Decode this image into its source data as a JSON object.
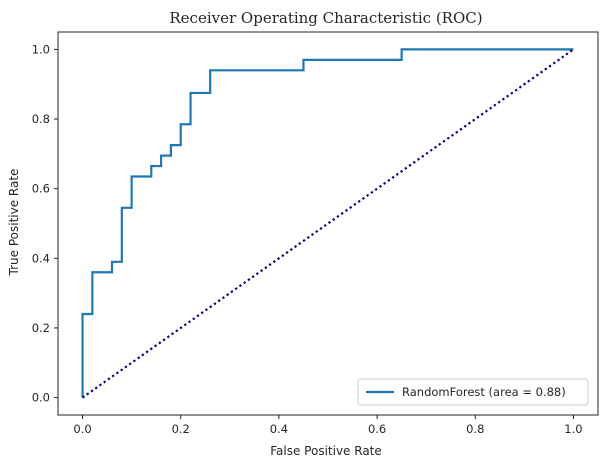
{
  "chart_data": {
    "type": "line",
    "title": "Receiver Operating Characteristic (ROC)",
    "xlabel": "False Positive Rate",
    "ylabel": "True Positive Rate",
    "xlim": [
      -0.05,
      1.05
    ],
    "ylim": [
      -0.05,
      1.05
    ],
    "xticks": [
      0.0,
      0.2,
      0.4,
      0.6,
      0.8,
      1.0
    ],
    "yticks": [
      0.0,
      0.2,
      0.4,
      0.6,
      0.8,
      1.0
    ],
    "tick_labels_x": [
      "0.0",
      "0.2",
      "0.4",
      "0.6",
      "0.8",
      "1.0"
    ],
    "tick_labels_y": [
      "0.0",
      "0.2",
      "0.4",
      "0.6",
      "0.8",
      "1.0"
    ],
    "grid": false,
    "legend_position": "lower-right",
    "series": [
      {
        "name": "RandomForest (area = 0.88)",
        "color": "#1f77b4",
        "style": "solid",
        "x": [
          0.0,
          0.0,
          0.02,
          0.02,
          0.06,
          0.06,
          0.08,
          0.08,
          0.1,
          0.1,
          0.14,
          0.14,
          0.16,
          0.16,
          0.18,
          0.18,
          0.2,
          0.2,
          0.22,
          0.22,
          0.26,
          0.26,
          0.45,
          0.45,
          0.65,
          0.65,
          1.0
        ],
        "y": [
          0.0,
          0.24,
          0.24,
          0.36,
          0.36,
          0.39,
          0.39,
          0.545,
          0.545,
          0.635,
          0.635,
          0.665,
          0.665,
          0.695,
          0.695,
          0.725,
          0.725,
          0.785,
          0.785,
          0.875,
          0.875,
          0.94,
          0.94,
          0.97,
          0.97,
          1.0,
          1.0
        ]
      },
      {
        "name": "",
        "color": "#000080",
        "style": "dotted",
        "x": [
          0.0,
          1.0
        ],
        "y": [
          0.0,
          1.0
        ]
      }
    ]
  }
}
